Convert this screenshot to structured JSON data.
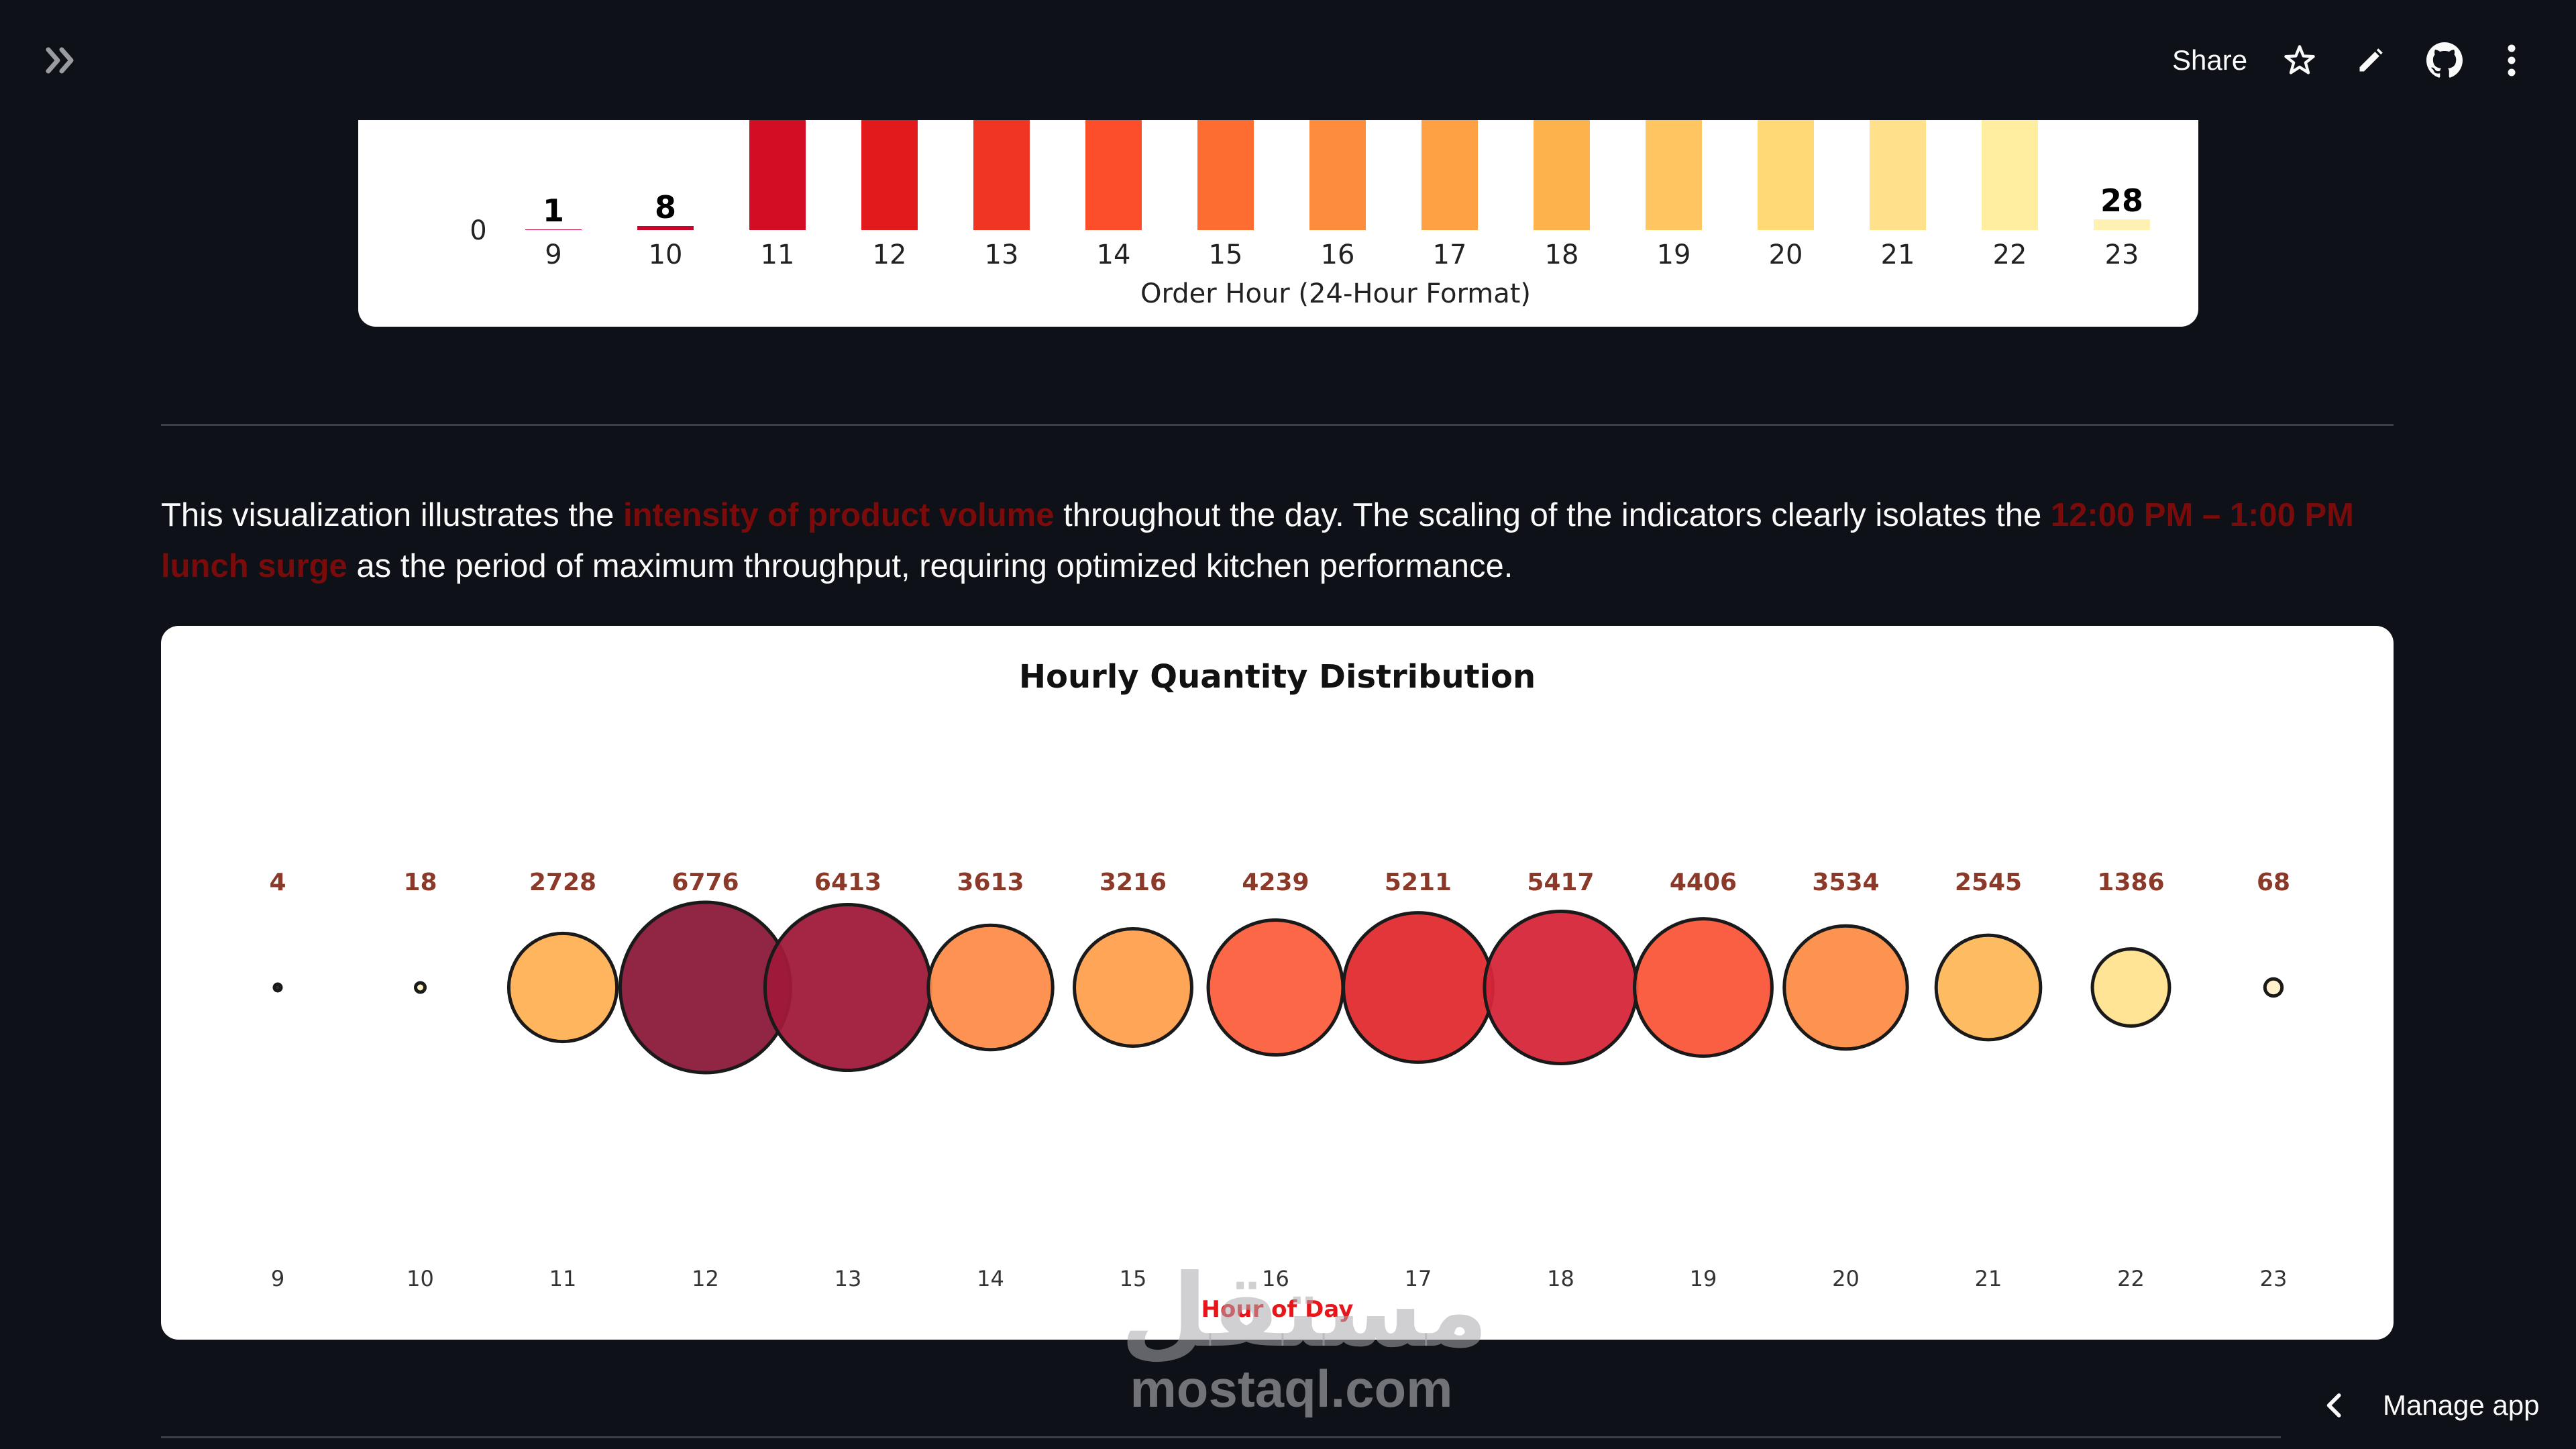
{
  "header": {
    "expand_sidebar_icon": "double-chevron-right-icon",
    "share_label": "Share",
    "icons": [
      "star-icon",
      "pencil-icon",
      "github-icon",
      "kebab-menu-icon"
    ]
  },
  "top_chart": {
    "xlabel": "Order Hour (24-Hour Format)",
    "y_tick_visible": "0",
    "hours": [
      "9",
      "10",
      "11",
      "12",
      "13",
      "14",
      "15",
      "16",
      "17",
      "18",
      "19",
      "20",
      "21",
      "22",
      "23"
    ],
    "visible_value_labels": {
      "9": "1",
      "10": "8",
      "23": "28"
    },
    "bar_colors": [
      "#bd0026",
      "#c9062a",
      "#d20d24",
      "#e31a1c",
      "#f03523",
      "#fc4e2a",
      "#fd6c31",
      "#fd8d3c",
      "#fea044",
      "#feb24c",
      "#fec561",
      "#fed976",
      "#fee18a",
      "#ffeda0",
      "#fff0b3"
    ]
  },
  "paragraph": {
    "part1": "This visualization illustrates the ",
    "highlight1": "intensity of product volume",
    "part2": " throughout the day. The scaling of the indicators clearly isolates the ",
    "highlight2": "12:00 PM – 1:00 PM lunch surge",
    "part3": " as the period of maximum throughput, requiring optimized kitchen performance.",
    "highlight_color": "#7a0b0b"
  },
  "chart_data": {
    "type": "scatter",
    "title": "Hourly Quantity Distribution",
    "xlabel": "Hour of Day",
    "ylabel": "",
    "categories": [
      "9",
      "10",
      "11",
      "12",
      "13",
      "14",
      "15",
      "16",
      "17",
      "18",
      "19",
      "20",
      "21",
      "22",
      "23"
    ],
    "values": [
      4,
      18,
      2728,
      6776,
      6413,
      3613,
      3216,
      4239,
      5211,
      5417,
      4406,
      3534,
      2545,
      1386,
      68
    ],
    "bubble_colors": [
      "#fff5c8",
      "#fff3c0",
      "#feb155",
      "#8b1a3a",
      "#a0193a",
      "#fd8c4a",
      "#fea04e",
      "#fc5f3e",
      "#e02b30",
      "#d6263a",
      "#fb5639",
      "#fd8d47",
      "#feb85a",
      "#fee38e",
      "#fff0c8"
    ],
    "value_label_color": "#8b3a2a",
    "xlabel_color": "#e8161b",
    "grid": false,
    "legend": "none"
  },
  "watermark": {
    "arabic": "مستقل",
    "latin": "mostaql.com"
  },
  "footer": {
    "manage_app_label": "Manage app"
  }
}
